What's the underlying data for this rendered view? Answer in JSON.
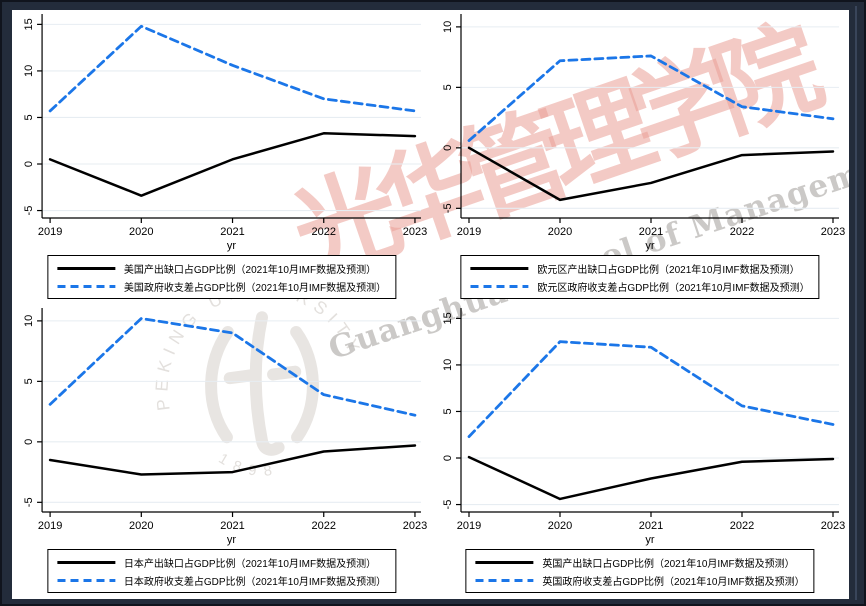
{
  "colors": {
    "frame_background": "#232c3b",
    "canvas_background": "#ffffff",
    "output_gap_line": "#000000",
    "fiscal_balance_line": "#1b76e8",
    "gridline": "#e7edf2",
    "axis": "#000000"
  },
  "watermark": {
    "calligraphy": "光华管理学院",
    "script_text": "Guanghua School of Management",
    "seal_ring_text": "PEKING UNIVERSITY",
    "seal_year": "1898",
    "calligraphy_color": "#e99e96",
    "seal_color": "#e8e5e2",
    "script_color": "#b9b7b4"
  },
  "chart_data": [
    {
      "type": "line",
      "region": "美国",
      "x": [
        2019,
        2020,
        2021,
        2022,
        2023
      ],
      "xlabel": "yr",
      "yticks": [
        -5,
        0,
        5,
        10,
        15
      ],
      "ylim": [
        -5,
        15
      ],
      "grid": true,
      "legend_position": "bottom",
      "series": [
        {
          "name": "output-gap",
          "label": "美国产出缺口占GDP比例（2021年10月IMF数据及预测）",
          "style": "solid",
          "color": "#000000",
          "values": [
            0.5,
            -3.4,
            0.5,
            3.3,
            3.0
          ]
        },
        {
          "name": "fiscal-balance",
          "label": "美国政府收支差占GDP比例（2021年10月IMF数据及预测）",
          "style": "dashed",
          "color": "#1b76e8",
          "values": [
            5.7,
            14.8,
            10.6,
            7.0,
            5.7
          ]
        }
      ]
    },
    {
      "type": "line",
      "region": "欧元区",
      "x": [
        2019,
        2020,
        2021,
        2022,
        2023
      ],
      "xlabel": "yr",
      "yticks": [
        -5,
        0,
        5,
        10
      ],
      "ylim": [
        -5,
        10
      ],
      "grid": true,
      "legend_position": "bottom",
      "series": [
        {
          "name": "output-gap",
          "label": "欧元区产出缺口占GDP比例（2021年10月IMF数据及预测）",
          "style": "solid",
          "color": "#000000",
          "values": [
            0.0,
            -4.3,
            -2.9,
            -0.6,
            -0.3
          ]
        },
        {
          "name": "fiscal-balance",
          "label": "欧元区政府收支差占GDP比例（2021年10月IMF数据及预测）",
          "style": "dashed",
          "color": "#1b76e8",
          "values": [
            0.6,
            7.2,
            7.6,
            3.4,
            2.4
          ]
        }
      ]
    },
    {
      "type": "line",
      "region": "日本",
      "x": [
        2019,
        2020,
        2021,
        2022,
        2023
      ],
      "xlabel": "yr",
      "yticks": [
        -5,
        0,
        5,
        10
      ],
      "ylim": [
        -5,
        10
      ],
      "grid": true,
      "legend_position": "bottom",
      "series": [
        {
          "name": "output-gap",
          "label": "日本产出缺口占GDP比例（2021年10月IMF数据及预测）",
          "style": "solid",
          "color": "#000000",
          "values": [
            -1.5,
            -2.7,
            -2.5,
            -0.8,
            -0.3
          ]
        },
        {
          "name": "fiscal-balance",
          "label": "日本政府收支差占GDP比例（2021年10月IMF数据及预测）",
          "style": "dashed",
          "color": "#1b76e8",
          "values": [
            3.1,
            10.2,
            9.0,
            3.9,
            2.2
          ]
        }
      ]
    },
    {
      "type": "line",
      "region": "英国",
      "x": [
        2019,
        2020,
        2021,
        2022,
        2023
      ],
      "xlabel": "yr",
      "yticks": [
        -5,
        0,
        5,
        10,
        15
      ],
      "ylim": [
        -5,
        15
      ],
      "grid": true,
      "legend_position": "bottom",
      "series": [
        {
          "name": "output-gap",
          "label": "英国产出缺口占GDP比例（2021年10月IMF数据及预测）",
          "style": "solid",
          "color": "#000000",
          "values": [
            0.1,
            -4.4,
            -2.2,
            -0.4,
            -0.1
          ]
        },
        {
          "name": "fiscal-balance",
          "label": "英国政府收支差占GDP比例（2021年10月IMF数据及预测）",
          "style": "dashed",
          "color": "#1b76e8",
          "values": [
            2.3,
            12.5,
            11.9,
            5.6,
            3.6
          ]
        }
      ]
    }
  ]
}
